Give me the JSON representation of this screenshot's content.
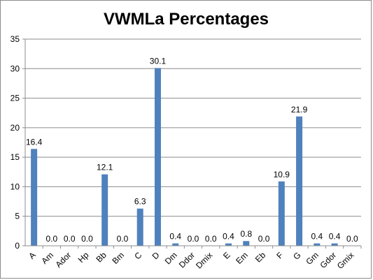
{
  "chart_data": {
    "type": "bar",
    "title": "VWMLa Percentages",
    "xlabel": "",
    "ylabel": "",
    "ylim": [
      0,
      35
    ],
    "yticks": [
      "0",
      "5",
      "10",
      "15",
      "20",
      "25",
      "30",
      "35"
    ],
    "grid": true,
    "legend": "none",
    "bar_color": "#4f81bd",
    "categories": [
      "A",
      "Am",
      "Ador",
      "Hp",
      "Bb",
      "Bm",
      "C",
      "D",
      "Dm",
      "Ddor",
      "Dmix",
      "E",
      "Em",
      "Eb",
      "F",
      "G",
      "Gm",
      "Gdor",
      "Gmix"
    ],
    "values": [
      16.4,
      0.0,
      0.0,
      0.0,
      12.1,
      0.0,
      6.3,
      30.1,
      0.4,
      0.0,
      0.0,
      0.4,
      0.8,
      0.0,
      10.9,
      21.9,
      0.4,
      0.4,
      0.0
    ],
    "data_labels": [
      "16.4",
      "0.0",
      "0.0",
      "0.0",
      "12.1",
      "0.0",
      "6.3",
      "30.1",
      "0.4",
      "0.0",
      "0.0",
      "0.4",
      "0.8",
      "0.0",
      "10.9",
      "21.9",
      "0.4",
      "0.4",
      "0.0"
    ]
  }
}
